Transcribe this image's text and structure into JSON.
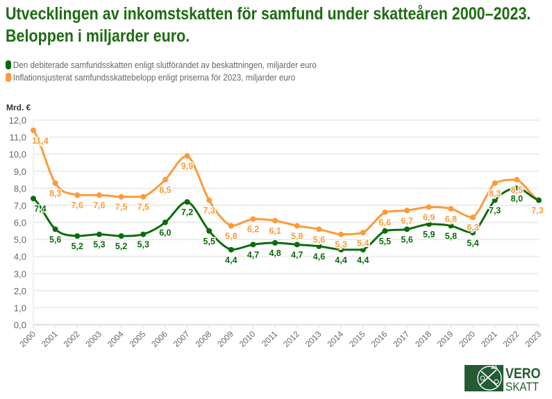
{
  "title": "Utvecklingen av inkomstskatten för samfund under skatteåren 2000–2023. Beloppen i miljarder euro.",
  "logo": {
    "line1": "VERO",
    "line2": "SKATT"
  },
  "colors": {
    "green": "#0a6b0a",
    "orange": "#fd9a38",
    "title": "#1e6b12",
    "grid": "#e8e8e8",
    "axis_text": "#666666"
  },
  "chart_data": {
    "type": "line",
    "title": "Utvecklingen av inkomstskatten för samfund under skatteåren 2000–2023. Beloppen i miljarder euro.",
    "ylabel": "Mrd. €",
    "xlabel": "",
    "ylim": [
      0,
      12
    ],
    "yticks": [
      "0,0",
      "1,0",
      "2,0",
      "3,0",
      "4,0",
      "5,0",
      "6,0",
      "7,0",
      "8,0",
      "9,0",
      "10,0",
      "11,0",
      "12,0"
    ],
    "grid": true,
    "legend_position": "top-left",
    "x": [
      "2000",
      "2001",
      "2002",
      "2003",
      "2004",
      "2005",
      "2006",
      "2007",
      "2008",
      "2009",
      "2010",
      "2011",
      "2012",
      "2013",
      "2014",
      "2015",
      "2016",
      "2017",
      "2018",
      "2019",
      "2020",
      "2021",
      "2022",
      "2023"
    ],
    "series": [
      {
        "name": "Den debiterade samfundsskatten enligt slutförandet av beskattningen, miljarder euro",
        "color": "#0a6b0a",
        "values": [
          7.4,
          5.6,
          5.2,
          5.3,
          5.2,
          5.3,
          6.0,
          7.2,
          5.5,
          4.4,
          4.7,
          4.8,
          4.7,
          4.6,
          4.4,
          4.4,
          5.5,
          5.6,
          5.9,
          5.8,
          5.4,
          7.3,
          8.0,
          7.3
        ],
        "labels": [
          "7,4",
          "5,6",
          "5,2",
          "5,3",
          "5,2",
          "5,3",
          "6,0",
          "7,2",
          "5,5",
          "4,4",
          "4,7",
          "4,8",
          "4,7",
          "4,6",
          "4,4",
          "4,4",
          "5,5",
          "5,6",
          "5,9",
          "5,8",
          "5,4",
          "7,3",
          "8,0",
          ""
        ]
      },
      {
        "name": "Inflationsjusterat samfundsskattebelopp enligt priserna för 2023, miljarder euro",
        "color": "#fd9a38",
        "values": [
          11.4,
          8.3,
          7.6,
          7.6,
          7.5,
          7.5,
          8.5,
          9.9,
          7.3,
          5.8,
          6.2,
          6.1,
          5.8,
          5.6,
          5.3,
          5.4,
          6.6,
          6.7,
          6.9,
          6.8,
          6.3,
          8.3,
          8.5,
          7.3
        ],
        "labels": [
          "11,4",
          "8,3",
          "7,6",
          "7,6",
          "7,5",
          "7,5",
          "8,5",
          "9,9",
          "7,3",
          "5,8",
          "6,2",
          "6,1",
          "5,8",
          "5,6",
          "5,3",
          "5,4",
          "6,6",
          "6,7",
          "6,9",
          "6,8",
          "6,3",
          "8,3",
          "8,5",
          "7,3"
        ]
      }
    ]
  }
}
